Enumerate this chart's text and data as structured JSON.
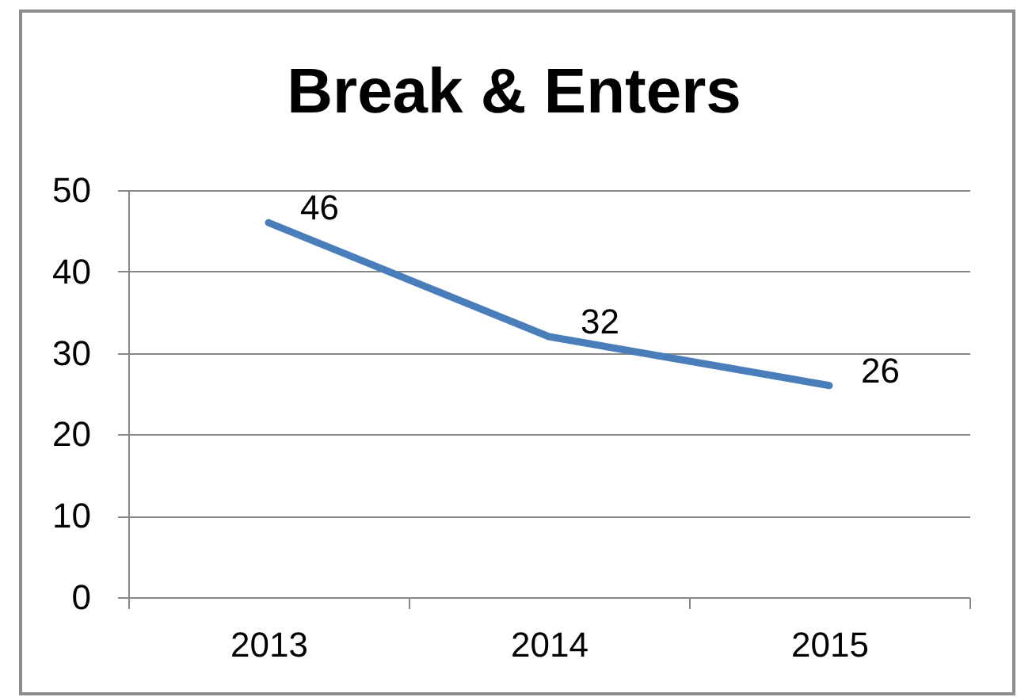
{
  "chart_data": {
    "type": "line",
    "title": "Break & Enters",
    "categories": [
      "2013",
      "2014",
      "2015"
    ],
    "series": [
      {
        "color": "#4a7ebb",
        "values": [
          46,
          32,
          26
        ]
      }
    ],
    "ylim": [
      0,
      50
    ],
    "yticks": [
      0,
      10,
      20,
      30,
      40,
      50
    ],
    "grid": "y",
    "data_labels": true
  }
}
